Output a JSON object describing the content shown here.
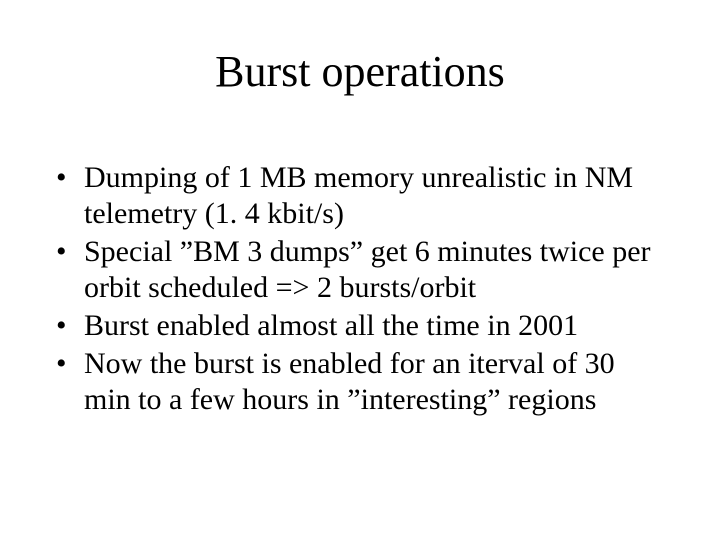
{
  "slide": {
    "title": "Burst operations",
    "title_fontsize": 44,
    "body_fontsize": 30,
    "font_family": "Times New Roman",
    "background_color": "#ffffff",
    "text_color": "#000000",
    "bullets": [
      "Dumping of 1 MB memory unrealistic in NM telemetry (1. 4 kbit/s)",
      "Special ”BM 3 dumps” get 6 minutes twice per orbit scheduled => 2 bursts/orbit",
      "Burst enabled almost all the time in 2001",
      "Now the burst is enabled for an iterval of 30 min to a few hours in ”interesting” regions"
    ]
  }
}
